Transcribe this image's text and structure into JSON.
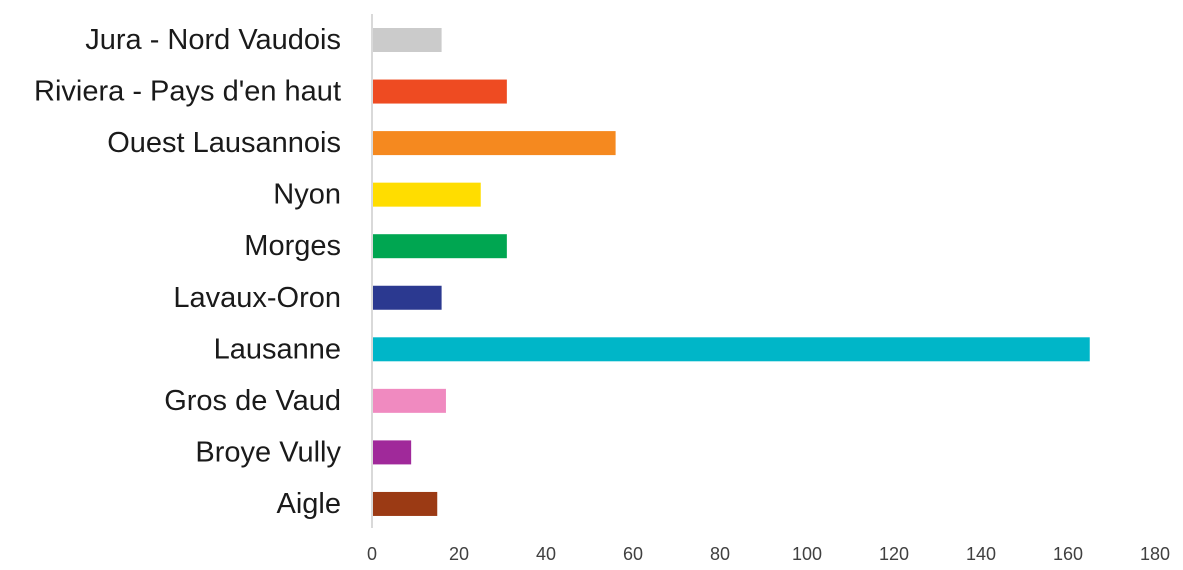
{
  "chart_data": {
    "type": "bar",
    "orientation": "horizontal",
    "title": "",
    "xlabel": "",
    "ylabel": "",
    "categories": [
      "Jura - Nord Vaudois",
      "Riviera - Pays d'en haut",
      "Ouest Lausannois",
      "Nyon",
      "Morges",
      "Lavaux-Oron",
      "Lausanne",
      "Gros de Vaud",
      "Broye Vully",
      "Aigle"
    ],
    "values": [
      16,
      31,
      56,
      25,
      31,
      16,
      165,
      17,
      9,
      15
    ],
    "colors": [
      "#cbcbcb",
      "#ee4b22",
      "#f5891f",
      "#ffdd00",
      "#00a651",
      "#2b3990",
      "#00b6c8",
      "#f08ac0",
      "#a0299a",
      "#9b3a14"
    ],
    "xlim": [
      0,
      180
    ],
    "xticks": [
      "0",
      "20",
      "40",
      "60",
      "80",
      "100",
      "120",
      "140",
      "160",
      "180"
    ],
    "grid": false,
    "legend": "none"
  }
}
